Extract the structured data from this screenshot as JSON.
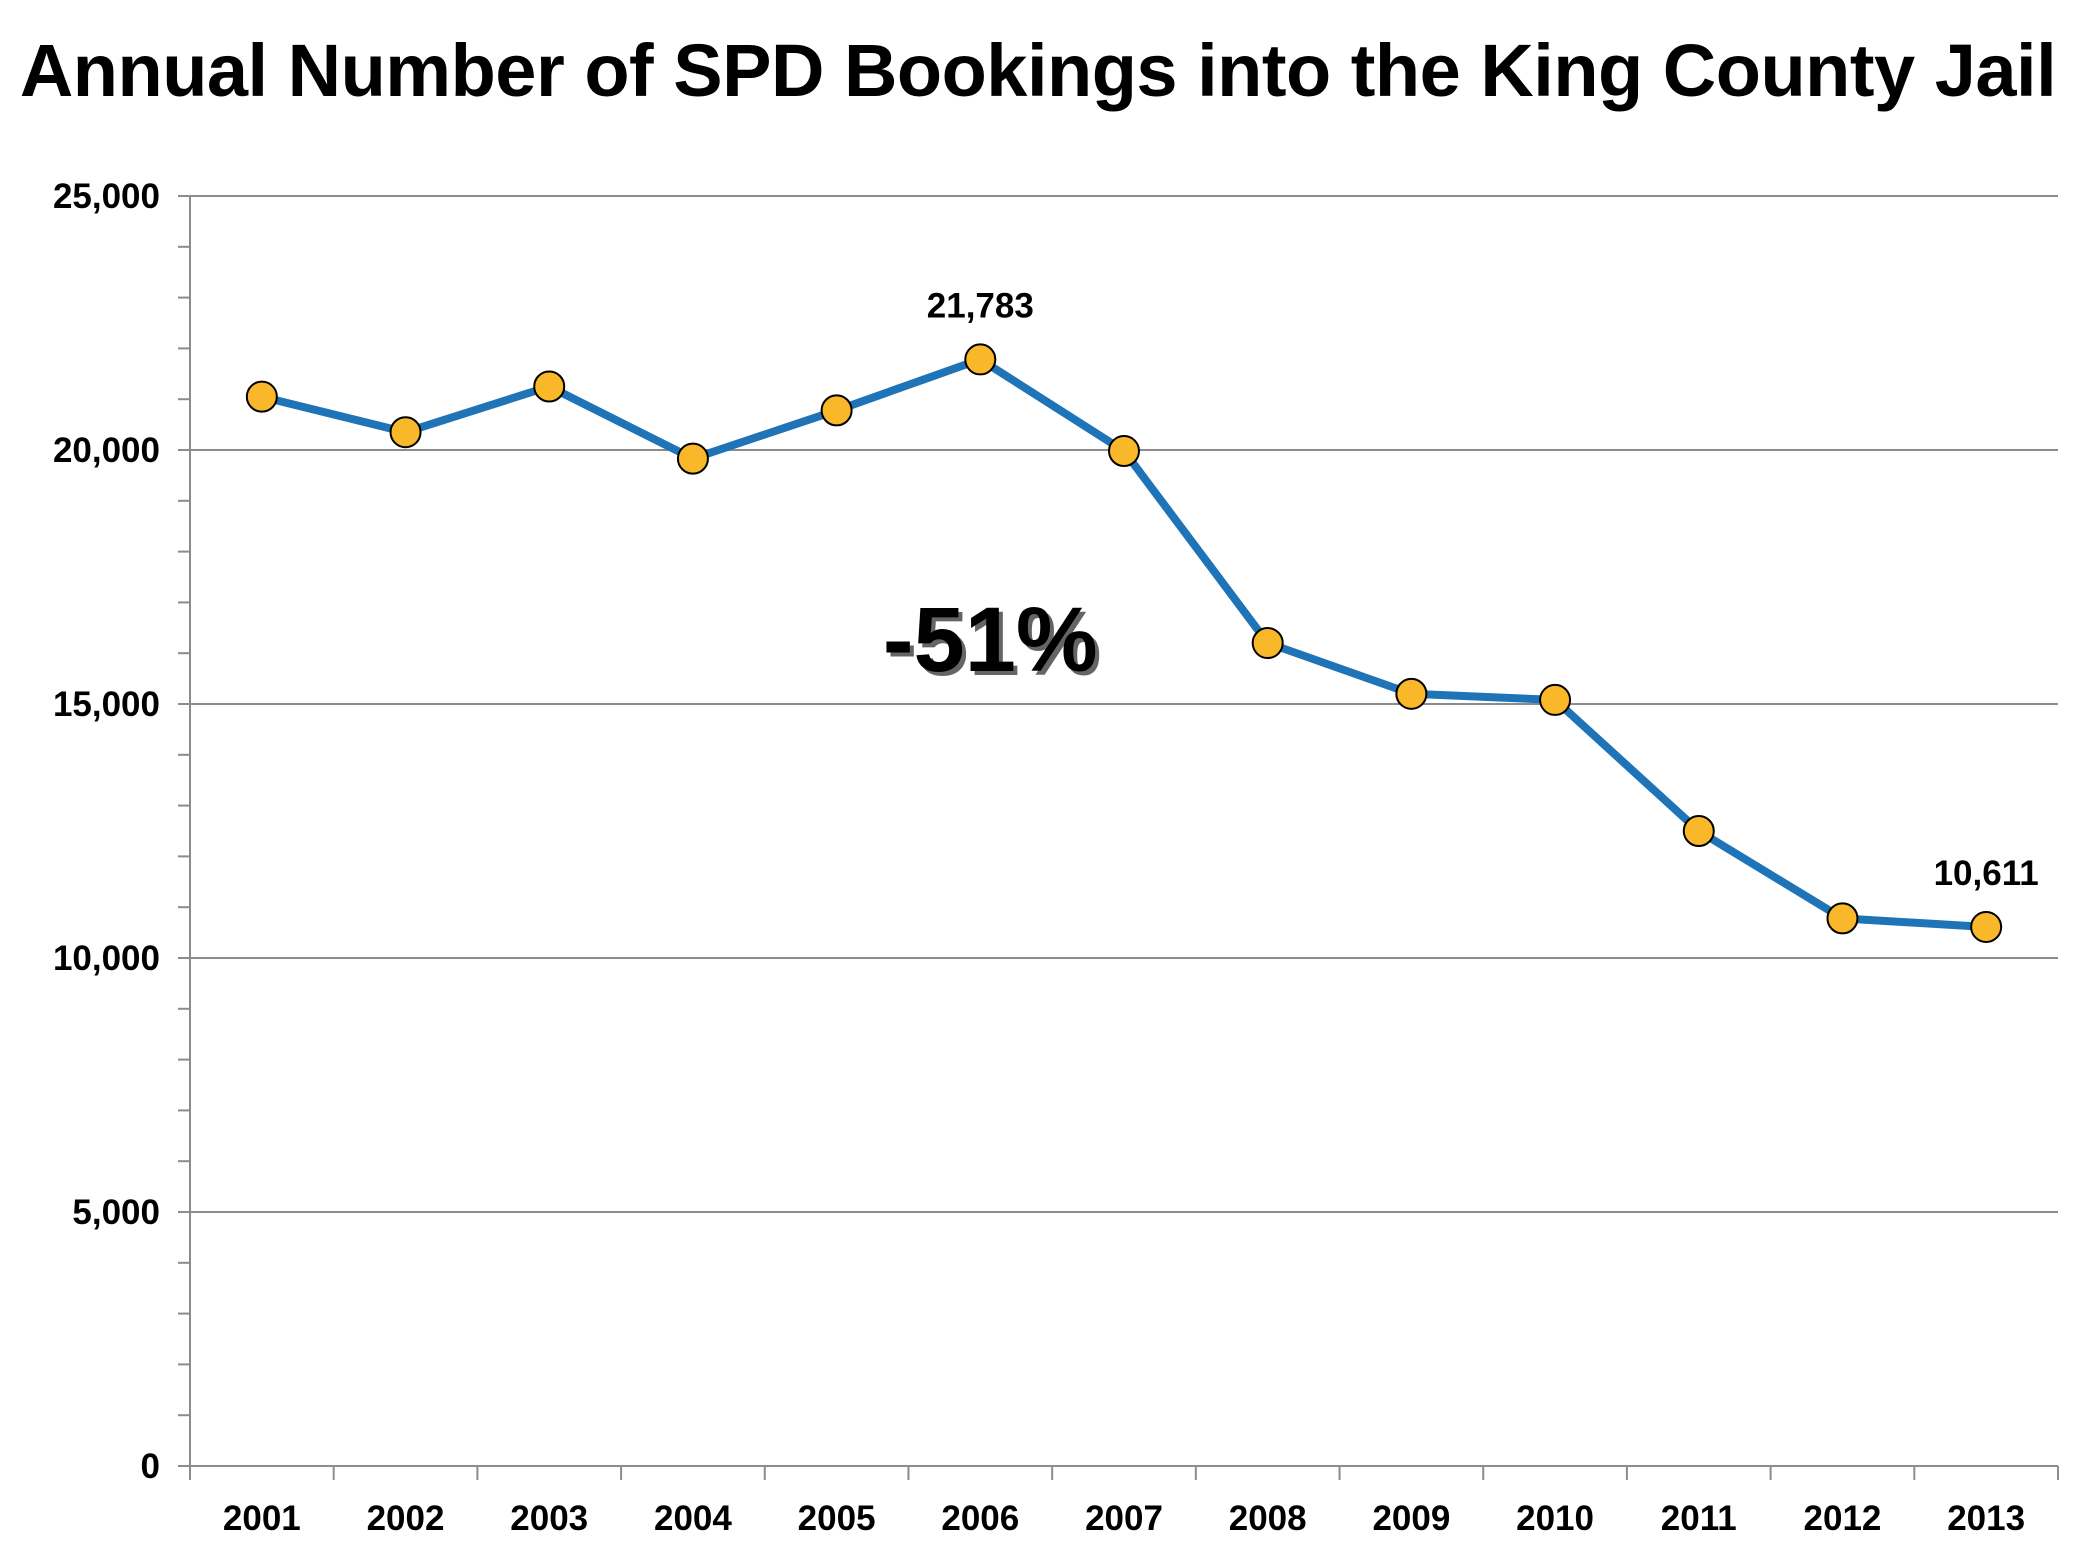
{
  "chart_data": {
    "type": "line",
    "title": "Annual Number of SPD Bookings into the King County Jail",
    "xlabel": "",
    "ylabel": "",
    "categories": [
      "2001",
      "2002",
      "2003",
      "2004",
      "2005",
      "2006",
      "2007",
      "2008",
      "2009",
      "2010",
      "2011",
      "2012",
      "2013"
    ],
    "series": [
      {
        "values": [
          21050,
          20350,
          21250,
          19830,
          20780,
          21783,
          19980,
          16200,
          15200,
          15080,
          12500,
          10780,
          10611
        ]
      }
    ],
    "ylim": [
      0,
      25000
    ],
    "y_ticks": [
      0,
      5000,
      10000,
      15000,
      20000,
      25000
    ],
    "y_tick_labels": [
      "0",
      "5,000",
      "10,000",
      "15,000",
      "20,000",
      "25,000"
    ],
    "y_minor_step": 1000,
    "data_labels": [
      {
        "category": "2006",
        "text": "21,783"
      },
      {
        "category": "2013",
        "text": "10,611"
      }
    ],
    "annotations": [
      {
        "text": "-51%"
      }
    ],
    "grid": true,
    "legend": "none",
    "colors": {
      "line": "#1f73b7",
      "marker_fill": "#f9b82a",
      "marker_stroke": "#000000",
      "grid": "#8c8c8c",
      "axis": "#8c8c8c"
    }
  }
}
